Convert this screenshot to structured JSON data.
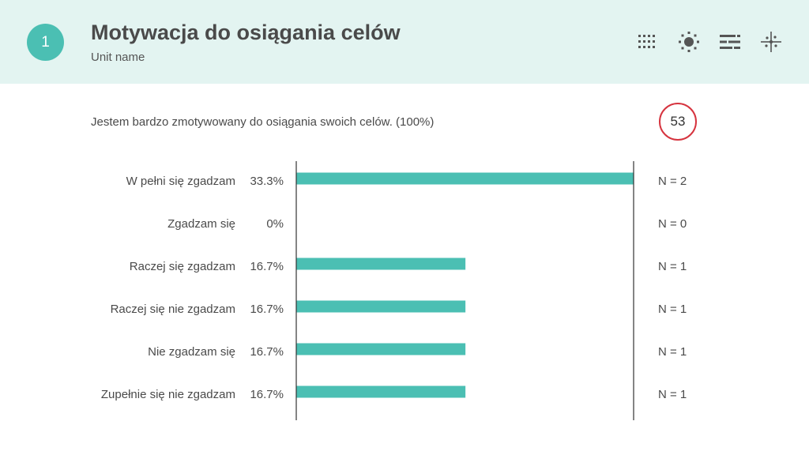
{
  "header": {
    "number": "1",
    "title": "Motywacja do osiągania celów",
    "subtitle": "Unit name",
    "background": "#e3f4f1",
    "accent": "#4bbfb3"
  },
  "toolbar": {
    "icons": [
      "dot-grid-icon",
      "sun-icon",
      "bars-icon",
      "sparkle-cross-icon"
    ]
  },
  "question": {
    "text": "Jestem bardzo zmotywowany do osiągania swoich celów. (100%)",
    "count": "53",
    "count_color": "#d6343f"
  },
  "chart_data": {
    "type": "bar",
    "orientation": "horizontal",
    "categories": [
      "W pełni się zgadzam",
      "Zgadzam się",
      "Raczej się zgadzam",
      "Raczej się nie zgadzam",
      "Nie zgadzam się",
      "Zupełnie się nie zgadzam"
    ],
    "values": [
      33.3,
      0,
      16.7,
      16.7,
      16.7,
      16.7
    ],
    "value_labels": [
      "33.3%",
      "0%",
      "16.7%",
      "16.7%",
      "16.7%",
      "16.7%"
    ],
    "n_labels": [
      "N = 2",
      "N = 0",
      "N = 1",
      "N = 1",
      "N = 1",
      "N = 1"
    ],
    "xlim": [
      0,
      33.3
    ],
    "bar_color": "#4bbfb3"
  }
}
